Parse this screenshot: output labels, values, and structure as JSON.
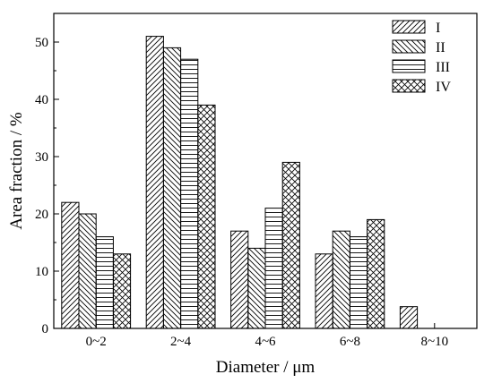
{
  "chart_data": {
    "type": "bar",
    "categories": [
      "0~2",
      "2~4",
      "4~6",
      "6~8",
      "8~10"
    ],
    "series": [
      {
        "name": "I",
        "values": [
          22,
          51,
          17,
          13,
          3.8
        ],
        "pattern": "diag-right"
      },
      {
        "name": "II",
        "values": [
          20,
          49,
          14,
          17,
          0
        ],
        "pattern": "diag-left"
      },
      {
        "name": "III",
        "values": [
          16,
          47,
          21,
          16,
          0
        ],
        "pattern": "horizontal"
      },
      {
        "name": "IV",
        "values": [
          13,
          39,
          29,
          19,
          0
        ],
        "pattern": "cross"
      }
    ],
    "xlabel": "Diameter / μm",
    "ylabel": "Area fraction / %",
    "ylim": [
      0,
      55
    ],
    "yticks": [
      0,
      10,
      20,
      30,
      40,
      50
    ],
    "legend_position": "top-right",
    "grid": false
  }
}
